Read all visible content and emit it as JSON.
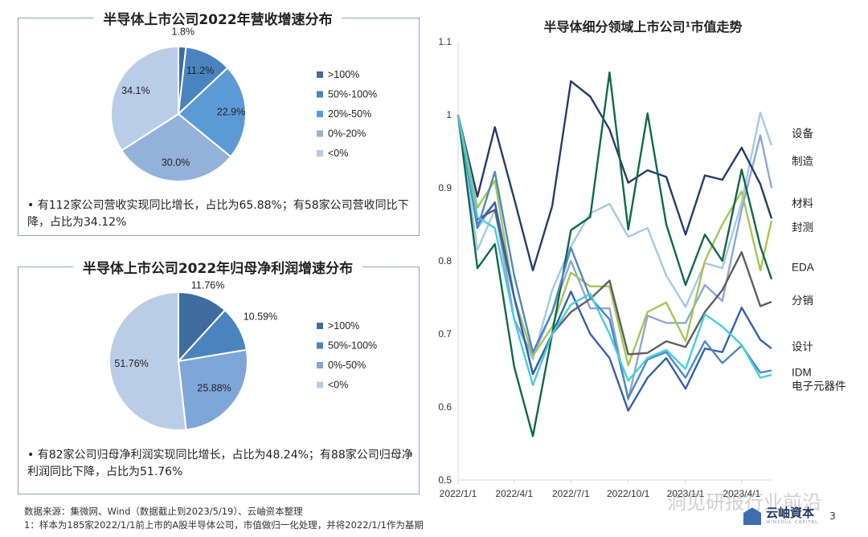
{
  "pie1": {
    "title": "半导体上市公司2022年营收增速分布",
    "bullet": "有112家公司营收实现同比增长，占比为65.88%；有58家公司营收同比下降，占比为34.12%",
    "chart_data": {
      "type": "pie",
      "categories": [
        ">100%",
        "50%-100%",
        "20%-50%",
        "0%-20%",
        "<0%"
      ],
      "values": [
        1.8,
        11.2,
        22.9,
        30.0,
        34.1
      ],
      "labels": [
        "1.8%",
        "11.2%",
        "22.9%",
        "30.0%",
        "34.1%"
      ],
      "colors": [
        "#3e6c9f",
        "#4a84bf",
        "#5c9ad6",
        "#93b2d9",
        "#b9cde7"
      ],
      "legend": "right"
    }
  },
  "pie2": {
    "title": "半导体上市公司2022年归母净利润增速分布",
    "bullet": "有82家公司归母净利润实现同比增长，占比为48.24%；有88家公司归母净利润同比下降，占比为51.76%",
    "chart_data": {
      "type": "pie",
      "categories": [
        ">100%",
        "50%-100%",
        "0%-50%",
        "<0%"
      ],
      "values": [
        11.76,
        10.59,
        25.88,
        51.76
      ],
      "labels": [
        "11.76%",
        "10.59%",
        "25.88%",
        "51.76%"
      ],
      "colors": [
        "#3e6c9f",
        "#4a84bf",
        "#7fa6d8",
        "#b9cde7"
      ],
      "legend": "right"
    }
  },
  "line": {
    "title": "半导体细分领域上市公司¹市值走势",
    "chart_data": {
      "type": "line",
      "x": [
        "2022/1/1",
        "2022/2/1",
        "2022/3/1",
        "2022/4/1",
        "2022/5/1",
        "2022/6/1",
        "2022/7/1",
        "2022/8/1",
        "2022/9/1",
        "2022/10/1",
        "2022/11/1",
        "2022/12/1",
        "2023/1/1",
        "2023/2/1",
        "2023/3/1",
        "2023/4/1",
        "2023/5/1",
        "2023/5/19"
      ],
      "xticks": [
        "2022/1/1",
        "2022/4/1",
        "2022/7/1",
        "2022/10/1",
        "2023/1/1",
        "2023/4/1"
      ],
      "ylim": [
        0.5,
        1.1
      ],
      "yticks": [
        "0.5",
        "0.6",
        "0.7",
        "0.8",
        "0.9",
        "1",
        "1.1"
      ],
      "grid": false,
      "series": [
        {
          "name": "设备",
          "color": "#a4c8ea",
          "values": [
            1.0,
            0.815,
            0.87,
            0.72,
            0.665,
            0.76,
            0.82,
            0.865,
            0.878,
            0.833,
            0.845,
            0.78,
            0.737,
            0.797,
            0.79,
            0.88,
            1.003,
            0.958
          ]
        },
        {
          "name": "制造",
          "color": "#8ea6d6",
          "values": [
            1.0,
            0.845,
            0.88,
            0.72,
            0.67,
            0.73,
            0.8,
            0.735,
            0.735,
            0.61,
            0.725,
            0.715,
            0.715,
            0.767,
            0.745,
            0.87,
            0.972,
            0.9
          ]
        },
        {
          "name": "材料",
          "color": "#253c6b",
          "values": [
            1.0,
            0.888,
            0.983,
            0.885,
            0.787,
            0.875,
            1.046,
            1.025,
            0.98,
            0.907,
            0.924,
            0.915,
            0.836,
            0.917,
            0.911,
            0.955,
            0.905,
            0.858
          ]
        },
        {
          "name": "封测",
          "color": "#a6c652",
          "values": [
            1.0,
            0.873,
            0.91,
            0.75,
            0.67,
            0.71,
            0.784,
            0.765,
            0.765,
            0.657,
            0.73,
            0.743,
            0.69,
            0.8,
            0.85,
            0.895,
            0.787,
            0.855
          ]
        },
        {
          "name": "EDA",
          "color": "#0f6a45",
          "values": [
            1.0,
            0.79,
            0.823,
            0.655,
            0.56,
            0.7,
            0.842,
            0.86,
            1.058,
            0.843,
            1.002,
            0.85,
            0.767,
            0.836,
            0.8,
            0.925,
            0.82,
            0.775
          ]
        },
        {
          "name": "分销",
          "color": "#5e5e5e",
          "values": [
            1.0,
            0.857,
            0.87,
            0.75,
            0.645,
            0.7,
            0.73,
            0.748,
            0.773,
            0.672,
            0.674,
            0.69,
            0.682,
            0.73,
            0.76,
            0.812,
            0.738,
            0.744
          ]
        },
        {
          "name": "设计",
          "color": "#3461b0",
          "values": [
            1.0,
            0.85,
            0.88,
            0.75,
            0.645,
            0.7,
            0.758,
            0.7,
            0.667,
            0.595,
            0.64,
            0.667,
            0.625,
            0.68,
            0.675,
            0.736,
            0.692,
            0.68
          ]
        },
        {
          "name": "IDM",
          "color": "#4f88c6",
          "values": [
            1.0,
            0.845,
            0.922,
            0.78,
            0.675,
            0.73,
            0.818,
            0.75,
            0.72,
            0.612,
            0.665,
            0.675,
            0.64,
            0.69,
            0.66,
            0.684,
            0.647,
            0.65
          ]
        },
        {
          "name": "电子元器件",
          "color": "#45cfd9",
          "values": [
            1.0,
            0.86,
            0.845,
            0.72,
            0.63,
            0.7,
            0.74,
            0.755,
            0.7,
            0.636,
            0.667,
            0.678,
            0.652,
            0.727,
            0.71,
            0.685,
            0.64,
            0.644
          ]
        }
      ]
    }
  },
  "footer": {
    "source": "数据来源：集微网、Wind（数据截止到2023/5/19）、云岫资本整理",
    "note": "1：样本为185家2022/1/1前上市的A股半导体公司，市值做归一化处理，并将2022/1/1作为基期"
  },
  "brand": {
    "name": "云岫資本",
    "sub": "WINSOUL CAPITAL",
    "page": "3"
  },
  "watermark": "洞见研报行业前沿"
}
